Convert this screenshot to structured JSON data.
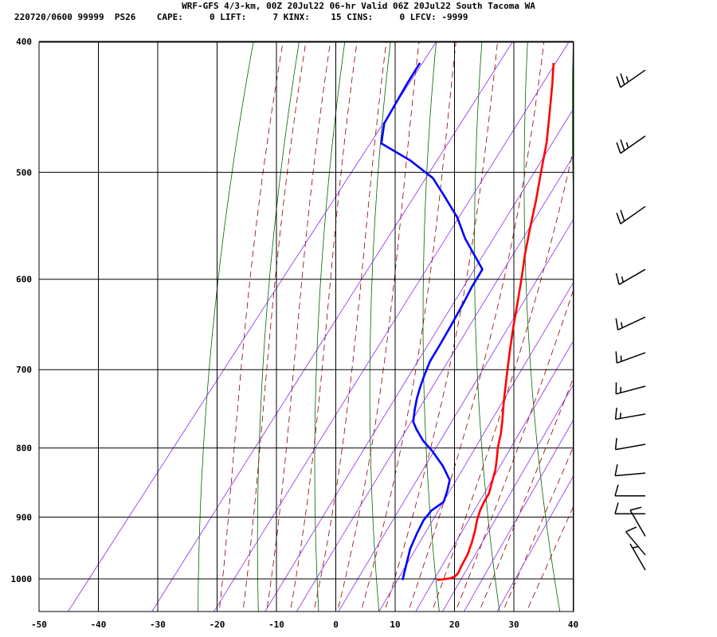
{
  "header": {
    "line1": "WRF-GFS 4/3-km, 00Z 20Jul22 06-hr Valid 06Z 20Jul22 South Tacoma WA",
    "line2": "220720/0600 99999  PS26    CAPE:     0 LIFT:     7 KINX:    15 CINS:     0 LFCV: -9999"
  },
  "colors": {
    "temperature": "#ff0000",
    "dewpoint": "#0000ff",
    "dry_adiabat": "#006400",
    "moist_adiabat": "#8b0000",
    "mixing_ratio": "#8a2be2",
    "grid": "#000000",
    "wind_barb": "#000000"
  },
  "chart_data": {
    "type": "line",
    "subtype": "skew-T log-p sounding",
    "x_ticks": [
      -50,
      -40,
      -30,
      -20,
      -10,
      0,
      10,
      20,
      30,
      40
    ],
    "y_ticks": [
      400,
      500,
      600,
      700,
      800,
      900,
      1000
    ],
    "xlim": [
      -50,
      40
    ],
    "ylim": [
      1040,
      400
    ],
    "y_scale": "log",
    "grid": true,
    "series": [
      {
        "points": [
          [
            1002,
            17.2
          ],
          [
            999,
            19.2
          ],
          [
            996,
            19.8
          ],
          [
            990,
            19.9
          ],
          [
            980,
            19.6
          ],
          [
            960,
            19.2
          ],
          [
            940,
            18.4
          ],
          [
            920,
            17.4
          ],
          [
            905,
            16.5
          ],
          [
            890,
            15.8
          ],
          [
            877,
            15.4
          ],
          [
            865,
            15.2
          ],
          [
            850,
            14.4
          ],
          [
            830,
            13.3
          ],
          [
            815,
            12.2
          ],
          [
            800,
            11.0
          ],
          [
            780,
            9.7
          ],
          [
            765,
            8.5
          ],
          [
            750,
            7.2
          ],
          [
            735,
            5.9
          ],
          [
            715,
            4.2
          ],
          [
            700,
            2.9
          ],
          [
            675,
            0.7
          ],
          [
            650,
            -1.5
          ],
          [
            625,
            -3.7
          ],
          [
            600,
            -6.0
          ],
          [
            575,
            -8.5
          ],
          [
            550,
            -10.9
          ],
          [
            525,
            -13.3
          ],
          [
            500,
            -16.0
          ],
          [
            475,
            -18.8
          ],
          [
            450,
            -22.2
          ],
          [
            430,
            -25.1
          ],
          [
            415,
            -27.5
          ]
        ]
      },
      {
        "points": [
          [
            1002,
            11.4
          ],
          [
            990,
            10.8
          ],
          [
            970,
            9.8
          ],
          [
            950,
            8.8
          ],
          [
            925,
            8.0
          ],
          [
            905,
            7.5
          ],
          [
            890,
            7.6
          ],
          [
            877,
            8.6
          ],
          [
            860,
            7.8
          ],
          [
            845,
            6.9
          ],
          [
            825,
            4.0
          ],
          [
            805,
            0.5
          ],
          [
            790,
            -2.5
          ],
          [
            775,
            -5.0
          ],
          [
            765,
            -6.5
          ],
          [
            750,
            -7.7
          ],
          [
            735,
            -8.8
          ],
          [
            720,
            -9.7
          ],
          [
            705,
            -10.5
          ],
          [
            690,
            -11.2
          ],
          [
            670,
            -11.6
          ],
          [
            650,
            -12.1
          ],
          [
            625,
            -12.8
          ],
          [
            608,
            -13.4
          ],
          [
            590,
            -13.8
          ],
          [
            560,
            -20.5
          ],
          [
            540,
            -24.5
          ],
          [
            520,
            -29.5
          ],
          [
            505,
            -33.5
          ],
          [
            490,
            -39.5
          ],
          [
            476,
            -46.5
          ],
          [
            460,
            -48.5
          ],
          [
            430,
            -49.6
          ],
          [
            415,
            -50.0
          ]
        ]
      }
    ],
    "wind_barbs": [
      {
        "p": 420,
        "speed_kt": 25,
        "dir_deg": 235
      },
      {
        "p": 470,
        "speed_kt": 25,
        "dir_deg": 235
      },
      {
        "p": 530,
        "speed_kt": 20,
        "dir_deg": 235
      },
      {
        "p": 590,
        "speed_kt": 15,
        "dir_deg": 240
      },
      {
        "p": 640,
        "speed_kt": 15,
        "dir_deg": 245
      },
      {
        "p": 680,
        "speed_kt": 15,
        "dir_deg": 250
      },
      {
        "p": 720,
        "speed_kt": 15,
        "dir_deg": 255
      },
      {
        "p": 755,
        "speed_kt": 15,
        "dir_deg": 260
      },
      {
        "p": 795,
        "speed_kt": 10,
        "dir_deg": 260
      },
      {
        "p": 835,
        "speed_kt": 10,
        "dir_deg": 265
      },
      {
        "p": 868,
        "speed_kt": 10,
        "dir_deg": 270
      },
      {
        "p": 895,
        "speed_kt": 10,
        "dir_deg": 270
      },
      {
        "p": 930,
        "speed_kt": 10,
        "dir_deg": 330
      },
      {
        "p": 960,
        "speed_kt": 10,
        "dir_deg": 320
      },
      {
        "p": 985,
        "speed_kt": 5,
        "dir_deg": 330
      }
    ]
  }
}
